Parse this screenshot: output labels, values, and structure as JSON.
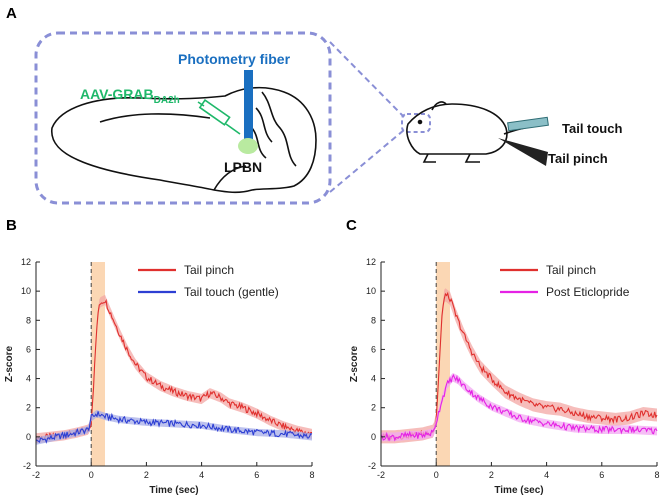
{
  "panel_a": {
    "letter": "A",
    "fiber_label": "Photometry fiber",
    "virus_label": "AAV-GRAB",
    "virus_subscript": "DA2h",
    "target_label": "LPBN",
    "touch_label": "Tail touch",
    "pinch_label": "Tail pinch",
    "colors": {
      "dashed": "#8a8fd6",
      "fiber": "#1a6fc0",
      "virus": "#1fb86a",
      "target": "#b9eaa0"
    }
  },
  "chart_data": [
    {
      "type": "line",
      "panel": "B",
      "xlabel": "Time (sec)",
      "ylabel": "Z-score",
      "xlim": [
        -2,
        8
      ],
      "ylim": [
        -2,
        12
      ],
      "xticks": [
        -2,
        0,
        2,
        4,
        6,
        8
      ],
      "yticks": [
        -2,
        0,
        2,
        4,
        6,
        8,
        10,
        12
      ],
      "stim_window": [
        0,
        0.5
      ],
      "onset": 0,
      "series": [
        {
          "name": "Tail pinch",
          "color": "#e0302e",
          "fill": "#f3a7a4",
          "x": [
            -2,
            -1.5,
            -1,
            -0.5,
            -0.1,
            0,
            0.1,
            0.2,
            0.3,
            0.5,
            0.7,
            1,
            1.3,
            1.6,
            2,
            2.5,
            3,
            3.5,
            4,
            4.3,
            4.7,
            5,
            5.5,
            6,
            6.5,
            7,
            7.5,
            8
          ],
          "y": [
            -0.1,
            0,
            0.1,
            0.3,
            0.5,
            1,
            4,
            7.5,
            9.2,
            9.4,
            8.5,
            7.2,
            6,
            5,
            4.1,
            3.5,
            3.1,
            2.8,
            2.6,
            3,
            2.7,
            2.3,
            2,
            1.6,
            1.1,
            0.7,
            0.4,
            0.2
          ],
          "band": 0.35
        },
        {
          "name": "Tail touch (gentle)",
          "color": "#2d3fd3",
          "fill": "#a7ade8",
          "x": [
            -2,
            -1.5,
            -1,
            -0.5,
            -0.1,
            0,
            0.2,
            0.5,
            1,
            1.5,
            2,
            3,
            4,
            5,
            6,
            7,
            8
          ],
          "y": [
            -0.3,
            -0.1,
            0.1,
            0.3,
            0.5,
            1.3,
            1.6,
            1.4,
            1.2,
            1.1,
            1,
            0.9,
            0.8,
            0.5,
            0.3,
            0.2,
            0
          ],
          "band": 0.25
        }
      ]
    },
    {
      "type": "line",
      "panel": "C",
      "xlabel": "Time (sec)",
      "ylabel": "Z-score",
      "xlim": [
        -2,
        8
      ],
      "ylim": [
        -2,
        12
      ],
      "xticks": [
        -2,
        0,
        2,
        4,
        6,
        8
      ],
      "yticks": [
        -2,
        0,
        2,
        4,
        6,
        8,
        10,
        12
      ],
      "stim_window": [
        0,
        0.5
      ],
      "onset": 0,
      "series": [
        {
          "name": "Tail pinch",
          "color": "#e0302e",
          "fill": "#f3a7a4",
          "x": [
            -2,
            -1.5,
            -1,
            -0.5,
            -0.1,
            0,
            0.1,
            0.2,
            0.3,
            0.5,
            0.7,
            1,
            1.3,
            1.6,
            2,
            2.5,
            3,
            3.5,
            4,
            4.5,
            5,
            5.5,
            6,
            6.5,
            7,
            7.5,
            8
          ],
          "y": [
            0,
            0,
            0.1,
            0.2,
            0.4,
            1.2,
            4.5,
            8,
            9.8,
            9.5,
            8.4,
            7,
            5.8,
            4.8,
            4,
            3.1,
            2.6,
            2.2,
            2,
            1.9,
            1.6,
            1.4,
            1.3,
            1.2,
            1.3,
            1.6,
            1.5
          ],
          "band": 0.45
        },
        {
          "name": "Post Eticlopride",
          "color": "#e522e5",
          "fill": "#f2a8f2",
          "x": [
            -2,
            -1.5,
            -1,
            -0.5,
            -0.1,
            0,
            0.2,
            0.4,
            0.6,
            0.8,
            1,
            1.5,
            2,
            2.5,
            3,
            3.5,
            4,
            5,
            6,
            7,
            8
          ],
          "y": [
            0,
            0,
            0.1,
            0.1,
            0.3,
            1,
            2.5,
            3.6,
            4.1,
            3.9,
            3.5,
            2.7,
            2.1,
            1.7,
            1.3,
            1.1,
            0.9,
            0.6,
            0.5,
            0.5,
            0.4
          ],
          "band": 0.3
        }
      ]
    }
  ]
}
